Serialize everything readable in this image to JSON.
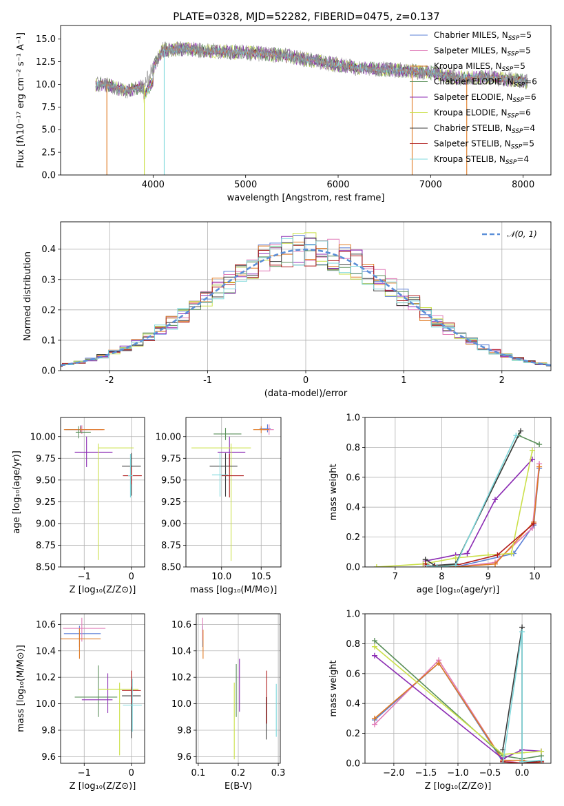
{
  "figure_title": "PLATE=0328, MJD=52282, FIBERID=0475, z=0.137",
  "colors": {
    "chabrier_miles": "#5a7fd6",
    "salpeter_miles": "#e07bb8",
    "kroupa_miles": "#e07a22",
    "chabrier_elodie": "#5a8f5a",
    "salpeter_elodie": "#8b2bb3",
    "kroupa_elodie": "#cbe04a",
    "chabrier_stelib": "#3c3c3c",
    "salpeter_stelib": "#b01c1c",
    "kroupa_stelib": "#7fd8dc",
    "gaussian": "#5b8fd8",
    "grid": "#b0b0b0"
  },
  "chart_data": [
    {
      "id": "spectrum",
      "type": "line",
      "title": "PLATE=0328, MJD=52282, FIBERID=0475, z=0.137",
      "xlabel": "wavelength [Angstrom, rest frame]",
      "ylabel": "Flux [fλ10⁻¹⁷ erg cm⁻² s⁻¹ A⁻¹]",
      "xlim": [
        3000,
        8300
      ],
      "ylim": [
        0,
        16.5
      ],
      "xticks": [
        4000,
        5000,
        6000,
        7000,
        8000
      ],
      "yticks": [
        0.0,
        2.5,
        5.0,
        7.5,
        10.0,
        12.5,
        15.0
      ],
      "grid": false,
      "legend_position": "top-right",
      "legend": [
        "Chabrier MILES, N_SSP=5",
        "Salpeter MILES, N_SSP=5",
        "Kroupa MILES, N_SSP=5",
        "Chabrier ELODIE, N_SSP=6",
        "Salpeter ELODIE, N_SSP=6",
        "Kroupa ELODIE, N_SSP=6",
        "Chabrier STELIB, N_SSP=4",
        "Salpeter STELIB, N_SSP=5",
        "Kroupa STELIB, N_SSP=4"
      ],
      "data_points_wavelength": [
        3380,
        3500,
        3700,
        3900,
        4000,
        4100,
        4300,
        4600,
        5000,
        5400,
        5800,
        6200,
        6600,
        7000,
        7300,
        7600,
        8000,
        8050
      ],
      "data_points_flux": [
        10.0,
        10.0,
        9.3,
        9.8,
        11.8,
        13.8,
        13.9,
        13.7,
        13.5,
        13.2,
        12.5,
        11.8,
        11.6,
        11.3,
        10.7,
        10.8,
        10.4,
        10.2
      ]
    },
    {
      "id": "residuals",
      "type": "line",
      "xlabel": "(data-model)/error",
      "ylabel": "Normed distribution",
      "xlim": [
        -2.5,
        2.5
      ],
      "ylim": [
        0,
        0.49
      ],
      "xticks": [
        -2,
        -1,
        0,
        1,
        2
      ],
      "yticks": [
        0.0,
        0.1,
        0.2,
        0.3,
        0.4
      ],
      "grid": true,
      "legend_position": "top-right",
      "legend": [
        "𝒩(0, 1)"
      ],
      "series": [
        {
          "name": "𝒩(0, 1)",
          "x_range": [
            -2.5,
            2.5
          ],
          "mean": 0,
          "sigma": 1
        }
      ]
    },
    {
      "id": "age_vs_Z",
      "type": "scatter",
      "xlabel": "Z [log₁₀(Z/Z⊙)]",
      "ylabel": "age  [log₁₀(age/yr)]",
      "xlim": [
        -1.5,
        0.28
      ],
      "ylim": [
        8.5,
        10.22
      ],
      "xticks": [
        -1,
        0
      ],
      "yticks": [
        8.5,
        8.75,
        9.0,
        9.25,
        9.5,
        9.75,
        10.0
      ],
      "grid": true,
      "points": [
        {
          "model": "chabrier_miles",
          "x": -1.08,
          "y": 10.08,
          "xerr": [
            0.32,
            0.15
          ],
          "yerr": [
            0.03,
            0.05
          ]
        },
        {
          "model": "salpeter_miles",
          "x": -1.05,
          "y": 10.08,
          "xerr": [
            0.15,
            0.45
          ],
          "yerr": [
            0.05,
            0.05
          ]
        },
        {
          "model": "kroupa_miles",
          "x": -1.07,
          "y": 10.08,
          "xerr": [
            0.36,
            0.5
          ],
          "yerr": [
            0.04,
            0.04
          ]
        },
        {
          "model": "chabrier_elodie",
          "x": -1.12,
          "y": 10.05,
          "xerr": [
            0.06,
            0.26
          ],
          "yerr": [
            0.07,
            0.07
          ]
        },
        {
          "model": "salpeter_elodie",
          "x": -0.95,
          "y": 9.82,
          "xerr": [
            0.25,
            0.55
          ],
          "yerr": [
            0.17,
            0.18
          ]
        },
        {
          "model": "kroupa_elodie",
          "x": -0.7,
          "y": 9.87,
          "xerr": [
            0.0,
            0.75
          ],
          "yerr": [
            1.29,
            0.05
          ]
        },
        {
          "model": "chabrier_stelib",
          "x": 0.0,
          "y": 9.66,
          "xerr": [
            0.2,
            0.2
          ],
          "yerr": [
            0.34,
            0.15
          ]
        },
        {
          "model": "salpeter_stelib",
          "x": 0.0,
          "y": 9.55,
          "xerr": [
            0.18,
            0.22
          ],
          "yerr": [
            0.1,
            0.1
          ]
        },
        {
          "model": "kroupa_stelib",
          "x": -0.02,
          "y": 9.55,
          "xerr": [
            0.05,
            0.05
          ],
          "yerr": [
            0.25,
            0.25
          ]
        }
      ]
    },
    {
      "id": "age_vs_mass",
      "type": "scatter",
      "xlabel": "mass [log₁₀(M/M⊙)]",
      "ylabel": "",
      "xlim": [
        9.55,
        10.75
      ],
      "ylim": [
        8.5,
        10.22
      ],
      "xticks": [
        10.0,
        10.5
      ],
      "yticks": [
        8.5,
        8.75,
        9.0,
        9.25,
        9.5,
        9.75,
        10.0
      ],
      "grid": true,
      "points": [
        {
          "model": "chabrier_miles",
          "x": 10.58,
          "y": 10.09,
          "xerr": [
            0.1,
            0.04
          ],
          "yerr": [
            0.04,
            0.05
          ]
        },
        {
          "model": "salpeter_miles",
          "x": 10.6,
          "y": 10.08,
          "xerr": [
            0.08,
            0.06
          ],
          "yerr": [
            0.06,
            0.06
          ]
        },
        {
          "model": "kroupa_miles",
          "x": 10.5,
          "y": 10.08,
          "xerr": [
            0.1,
            0.1
          ],
          "yerr": [
            0.04,
            0.04
          ]
        },
        {
          "model": "chabrier_elodie",
          "x": 10.05,
          "y": 10.03,
          "xerr": [
            0.15,
            0.2
          ],
          "yerr": [
            0.07,
            0.07
          ]
        },
        {
          "model": "salpeter_elodie",
          "x": 10.1,
          "y": 9.82,
          "xerr": [
            0.15,
            0.2
          ],
          "yerr": [
            0.16,
            0.18
          ]
        },
        {
          "model": "kroupa_elodie",
          "x": 10.12,
          "y": 9.87,
          "xerr": [
            0.5,
            0.25
          ],
          "yerr": [
            1.3,
            0.05
          ]
        },
        {
          "model": "chabrier_stelib",
          "x": 10.05,
          "y": 9.66,
          "xerr": [
            0.2,
            0.15
          ],
          "yerr": [
            0.35,
            0.15
          ]
        },
        {
          "model": "salpeter_stelib",
          "x": 10.1,
          "y": 9.55,
          "xerr": [
            0.1,
            0.18
          ],
          "yerr": [
            0.25,
            0.25
          ]
        },
        {
          "model": "kroupa_stelib",
          "x": 9.98,
          "y": 9.56,
          "xerr": [
            0.1,
            0.1
          ],
          "yerr": [
            0.25,
            0.25
          ]
        }
      ]
    },
    {
      "id": "massweight_vs_age",
      "type": "line",
      "xlabel": "age  [log₁₀(age/yr)]",
      "ylabel": "mass weight",
      "xlim": [
        6.35,
        10.35
      ],
      "ylim": [
        0,
        1.0
      ],
      "xticks": [
        7,
        8,
        9,
        10
      ],
      "yticks": [
        0.0,
        0.2,
        0.4,
        0.6,
        0.8,
        1.0
      ],
      "grid": true,
      "series": [
        {
          "name": "Chabrier MILES",
          "x": [
            7.65,
            7.85,
            8.3,
            9.55,
            9.98,
            10.1
          ],
          "y": [
            0.01,
            0.0,
            0.0,
            0.09,
            0.28,
            0.66
          ]
        },
        {
          "name": "Salpeter MILES",
          "x": [
            7.65,
            7.85,
            8.3,
            9.15,
            9.95,
            10.1
          ],
          "y": [
            0.01,
            0.0,
            0.0,
            0.03,
            0.26,
            0.69
          ]
        },
        {
          "name": "Kroupa MILES",
          "x": [
            7.65,
            7.85,
            8.3,
            9.15,
            9.98,
            10.1
          ],
          "y": [
            0.02,
            0.0,
            0.0,
            0.02,
            0.3,
            0.67
          ]
        },
        {
          "name": "Chabrier ELODIE",
          "x": [
            7.7,
            7.9,
            8.3,
            9.65,
            10.1
          ],
          "y": [
            0.01,
            0.0,
            0.02,
            0.88,
            0.82
          ]
        },
        {
          "name": "Salpeter ELODIE",
          "x": [
            7.65,
            8.3,
            8.55,
            9.15,
            9.95
          ],
          "y": [
            0.04,
            0.08,
            0.09,
            0.45,
            0.72
          ]
        },
        {
          "name": "Kroupa ELODIE",
          "x": [
            6.6,
            7.6,
            8.3,
            9.0,
            9.5,
            9.95
          ],
          "y": [
            0.0,
            0.02,
            0.06,
            0.08,
            0.09,
            0.78
          ]
        },
        {
          "name": "Chabrier STELIB",
          "x": [
            7.65,
            7.85,
            8.3,
            9.7
          ],
          "y": [
            0.05,
            0.01,
            0.02,
            0.91
          ]
        },
        {
          "name": "Salpeter STELIB",
          "x": [
            7.65,
            7.85,
            8.3,
            9.2,
            9.98
          ],
          "y": [
            0.02,
            0.0,
            0.01,
            0.08,
            0.29
          ]
        },
        {
          "name": "Kroupa STELIB",
          "x": [
            7.7,
            7.9,
            8.3,
            9.6
          ],
          "y": [
            0.01,
            0.0,
            0.01,
            0.88
          ]
        }
      ]
    },
    {
      "id": "mass_vs_Z",
      "type": "scatter",
      "xlabel": "Z [log₁₀(Z/Z⊙)]",
      "ylabel": "mass [log₁₀(M/M⊙)]",
      "xlim": [
        -1.5,
        0.28
      ],
      "ylim": [
        9.55,
        10.68
      ],
      "xticks": [
        -1,
        0
      ],
      "yticks": [
        9.6,
        9.8,
        10.0,
        10.2,
        10.4,
        10.6
      ],
      "grid": true,
      "points": [
        {
          "model": "chabrier_miles",
          "x": -1.1,
          "y": 10.53,
          "xerr": [
            0.33,
            0.45
          ],
          "yerr": [
            0.1,
            0.06
          ]
        },
        {
          "model": "salpeter_miles",
          "x": -1.05,
          "y": 10.57,
          "xerr": [
            0.4,
            0.5
          ],
          "yerr": [
            0.1,
            0.08
          ]
        },
        {
          "model": "kroupa_miles",
          "x": -1.1,
          "y": 10.49,
          "xerr": [
            0.4,
            0.45
          ],
          "yerr": [
            0.15,
            0.08
          ]
        },
        {
          "model": "chabrier_elodie",
          "x": -0.7,
          "y": 10.05,
          "xerr": [
            0.5,
            0.4
          ],
          "yerr": [
            0.15,
            0.24
          ]
        },
        {
          "model": "salpeter_elodie",
          "x": -0.5,
          "y": 10.03,
          "xerr": [
            0.55,
            0.1
          ],
          "yerr": [
            0.1,
            0.2
          ]
        },
        {
          "model": "kroupa_elodie",
          "x": -0.25,
          "y": 10.11,
          "xerr": [
            0.45,
            0.4
          ],
          "yerr": [
            0.5,
            0.05
          ]
        },
        {
          "model": "chabrier_stelib",
          "x": 0.0,
          "y": 10.06,
          "xerr": [
            0.2,
            0.2
          ],
          "yerr": [
            0.32,
            0.07
          ]
        },
        {
          "model": "salpeter_stelib",
          "x": 0.0,
          "y": 10.1,
          "xerr": [
            0.2,
            0.2
          ],
          "yerr": [
            0.1,
            0.15
          ]
        },
        {
          "model": "kroupa_stelib",
          "x": 0.02,
          "y": 9.99,
          "xerr": [
            0.2,
            0.2
          ],
          "yerr": [
            0.2,
            0.2
          ]
        }
      ]
    },
    {
      "id": "mass_vs_EBV",
      "type": "scatter",
      "xlabel": "E(B-V)",
      "ylabel": "",
      "xlim": [
        0.095,
        0.305
      ],
      "ylim": [
        9.55,
        10.68
      ],
      "xticks": [
        0.1,
        0.2,
        0.3
      ],
      "yticks": [
        9.6,
        9.8,
        10.0,
        10.2,
        10.4,
        10.6
      ],
      "grid": true,
      "points": [
        {
          "model": "chabrier_miles",
          "x": 0.111,
          "y": 10.53,
          "yerr": [
            0.1,
            0.06
          ]
        },
        {
          "model": "salpeter_miles",
          "x": 0.111,
          "y": 10.58,
          "yerr": [
            0.1,
            0.07
          ]
        },
        {
          "model": "kroupa_miles",
          "x": 0.112,
          "y": 10.49,
          "yerr": [
            0.15,
            0.07
          ]
        },
        {
          "model": "chabrier_elodie",
          "x": 0.195,
          "y": 10.05,
          "yerr": [
            0.15,
            0.25
          ]
        },
        {
          "model": "salpeter_elodie",
          "x": 0.203,
          "y": 10.14,
          "yerr": [
            0.2,
            0.2
          ]
        },
        {
          "model": "kroupa_elodie",
          "x": 0.19,
          "y": 9.9,
          "yerr": [
            0.32,
            0.26
          ]
        },
        {
          "model": "chabrier_stelib",
          "x": 0.27,
          "y": 9.85,
          "yerr": [
            0.12,
            0.2
          ]
        },
        {
          "model": "salpeter_stelib",
          "x": 0.271,
          "y": 10.05,
          "yerr": [
            0.2,
            0.2
          ]
        },
        {
          "model": "kroupa_stelib",
          "x": 0.295,
          "y": 9.95,
          "yerr": [
            0.2,
            0.2
          ]
        }
      ]
    },
    {
      "id": "massweight_vs_Z",
      "type": "line",
      "xlabel": "Z [log₁₀(Z/Z⊙)]",
      "ylabel": "mass weight",
      "xlim": [
        -2.45,
        0.45
      ],
      "ylim": [
        0,
        1.0
      ],
      "xticks": [
        -2.0,
        -1.5,
        -1.0,
        -0.5,
        0.0
      ],
      "yticks": [
        0.0,
        0.2,
        0.4,
        0.6,
        0.8,
        1.0
      ],
      "grid": true,
      "series": [
        {
          "name": "Chabrier MILES",
          "x": [
            -2.3,
            -1.3,
            -0.3,
            0.0,
            0.3
          ],
          "y": [
            0.29,
            0.67,
            0.01,
            0.0,
            0.0
          ]
        },
        {
          "name": "Salpeter MILES",
          "x": [
            -2.3,
            -1.3,
            -0.3,
            0.0,
            0.3
          ],
          "y": [
            0.26,
            0.69,
            0.02,
            0.0,
            0.0
          ]
        },
        {
          "name": "Kroupa MILES",
          "x": [
            -2.3,
            -1.3,
            -0.3,
            0.0,
            0.3
          ],
          "y": [
            0.3,
            0.67,
            0.02,
            0.02,
            0.0
          ]
        },
        {
          "name": "Chabrier ELODIE",
          "x": [
            -2.3,
            -0.3,
            0.0,
            0.3
          ],
          "y": [
            0.82,
            0.05,
            0.03,
            0.05
          ]
        },
        {
          "name": "Salpeter ELODIE",
          "x": [
            -2.3,
            -0.3,
            0.0,
            0.3
          ],
          "y": [
            0.72,
            0.03,
            0.09,
            0.08
          ]
        },
        {
          "name": "Kroupa ELODIE",
          "x": [
            -2.3,
            -0.3,
            0.0,
            0.3
          ],
          "y": [
            0.78,
            0.06,
            0.07,
            0.08
          ]
        },
        {
          "name": "Chabrier STELIB",
          "x": [
            -0.3,
            0.0,
            0.0,
            0.3
          ],
          "y": [
            0.09,
            0.91,
            0.0,
            0.02
          ]
        },
        {
          "name": "Salpeter STELIB",
          "x": [
            -0.3,
            0.0,
            0.3
          ],
          "y": [
            0.01,
            0.0,
            0.01
          ]
        },
        {
          "name": "Kroupa STELIB",
          "x": [
            -0.3,
            0.0,
            0.0,
            0.3
          ],
          "y": [
            0.0,
            0.88,
            0.01,
            0.02
          ]
        }
      ]
    }
  ]
}
